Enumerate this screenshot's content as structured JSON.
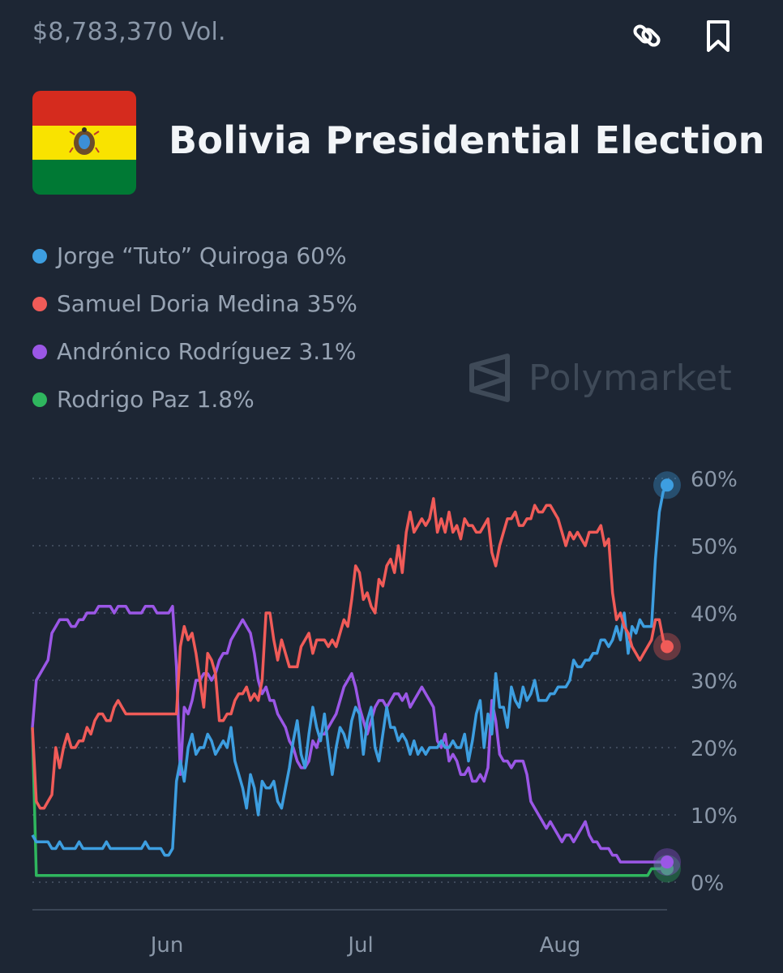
{
  "header": {
    "volume": "$8,783,370 Vol.",
    "share_icon": "link-icon",
    "bookmark_icon": "bookmark-icon"
  },
  "market": {
    "title": "Bolivia Presidential Election",
    "flag_icon": "bolivia-flag-icon",
    "flag_colors": [
      "#d52b1e",
      "#f9e300",
      "#007934"
    ]
  },
  "legend": [
    {
      "label": "Jorge “Tuto” Quiroga 60%",
      "color": "#3d9ee0"
    },
    {
      "label": "Samuel Doria Medina 35%",
      "color": "#f05b58"
    },
    {
      "label": "Andrónico Rodríguez 3.1%",
      "color": "#9b57e6"
    },
    {
      "label": "Rodrigo Paz 1.8%",
      "color": "#2fb65e"
    }
  ],
  "watermark": {
    "text": "Polymarket",
    "icon": "polymarket-logo-icon"
  },
  "chart_data": {
    "type": "line",
    "x_ticks": [
      "Jun",
      "Jul",
      "Aug"
    ],
    "y_ticks": [
      "60%",
      "50%",
      "40%",
      "30%",
      "20%",
      "10%",
      "0%"
    ],
    "ylim": [
      0,
      60
    ],
    "grid": "dotted horizontal",
    "series": [
      {
        "name": "Jorge “Tuto” Quiroga",
        "color": "#3d9ee0",
        "values": [
          7,
          6,
          6,
          6,
          6,
          5,
          5,
          6,
          5,
          5,
          5,
          5,
          6,
          5,
          5,
          5,
          5,
          5,
          5,
          6,
          5,
          5,
          5,
          5,
          5,
          5,
          5,
          5,
          5,
          6,
          5,
          5,
          5,
          5,
          4,
          4,
          5,
          15,
          18,
          15,
          20,
          22,
          19,
          20,
          20,
          22,
          21,
          19,
          20,
          21,
          20,
          23,
          18,
          16,
          14,
          11,
          16,
          14,
          10,
          15,
          14,
          14,
          15,
          12,
          11,
          14,
          17,
          21,
          24,
          19,
          17,
          22,
          26,
          23,
          21,
          25,
          20,
          16,
          20,
          23,
          22,
          20,
          24,
          26,
          25,
          19,
          24,
          26,
          20,
          18,
          22,
          26,
          23,
          23,
          21,
          22,
          21,
          19,
          21,
          19,
          20,
          19,
          20,
          20,
          20,
          21,
          20,
          20,
          21,
          20,
          20,
          22,
          18,
          21,
          25,
          27,
          20,
          25,
          22,
          31,
          26,
          26,
          23,
          29,
          27,
          26,
          29,
          27,
          28,
          30,
          27,
          27,
          27,
          28,
          28,
          29,
          29,
          29,
          30,
          33,
          32,
          32,
          33,
          33,
          34,
          34,
          36,
          36,
          35,
          36,
          38,
          36,
          40,
          34,
          38,
          37,
          39,
          38,
          38,
          38,
          48,
          55,
          58,
          59
        ]
      },
      {
        "name": "Samuel Doria Medina",
        "color": "#f05b58",
        "values": [
          23,
          12,
          11,
          11,
          12,
          13,
          20,
          17,
          20,
          22,
          20,
          20,
          21,
          21,
          23,
          22,
          24,
          25,
          25,
          24,
          24,
          26,
          27,
          26,
          25,
          25,
          25,
          25,
          25,
          25,
          25,
          25,
          25,
          25,
          25,
          25,
          25,
          25,
          35,
          38,
          36,
          37,
          34,
          30,
          26,
          34,
          33,
          31,
          24,
          24,
          25,
          25,
          27,
          28,
          28,
          29,
          27,
          28,
          27,
          30,
          40,
          40,
          36,
          33,
          36,
          34,
          32,
          32,
          32,
          35,
          36,
          37,
          34,
          36,
          36,
          36,
          35,
          36,
          35,
          37,
          39,
          38,
          42,
          47,
          46,
          42,
          43,
          41,
          40,
          45,
          44,
          47,
          48,
          46,
          50,
          46,
          52,
          55,
          52,
          53,
          54,
          53,
          54,
          57,
          52,
          54,
          52,
          55,
          52,
          53,
          51,
          54,
          53,
          53,
          52,
          52,
          53,
          54,
          49,
          47,
          50,
          52,
          54,
          54,
          55,
          53,
          53,
          54,
          54,
          56,
          55,
          55,
          56,
          56,
          55,
          54,
          52,
          50,
          52,
          51,
          52,
          51,
          50,
          52,
          52,
          52,
          53,
          50,
          51,
          43,
          39,
          40,
          38,
          37,
          35,
          34,
          33,
          34,
          35,
          36,
          39,
          39,
          36,
          35
        ]
      },
      {
        "name": "Andrónico Rodríguez",
        "color": "#9b57e6",
        "values": [
          23,
          30,
          31,
          32,
          33,
          37,
          38,
          39,
          39,
          39,
          38,
          38,
          39,
          39,
          40,
          40,
          40,
          41,
          41,
          41,
          41,
          40,
          41,
          41,
          41,
          40,
          40,
          40,
          40,
          41,
          41,
          41,
          40,
          40,
          40,
          40,
          41,
          32,
          16,
          26,
          25,
          27,
          30,
          30,
          31,
          31,
          30,
          31,
          33,
          34,
          34,
          36,
          37,
          38,
          39,
          38,
          37,
          34,
          30,
          28,
          29,
          27,
          27,
          25,
          24,
          23,
          21,
          20,
          18,
          17,
          17,
          18,
          21,
          20,
          22,
          22,
          23,
          24,
          25,
          27,
          29,
          30,
          31,
          29,
          26,
          24,
          22,
          24,
          26,
          27,
          27,
          26,
          27,
          28,
          28,
          27,
          28,
          26,
          27,
          28,
          29,
          28,
          27,
          26,
          21,
          20,
          22,
          18,
          19,
          18,
          16,
          16,
          17,
          15,
          15,
          16,
          15,
          17,
          27,
          24,
          19,
          18,
          18,
          17,
          18,
          18,
          18,
          16,
          12,
          11,
          10,
          9,
          8,
          9,
          8,
          7,
          6,
          7,
          7,
          6,
          7,
          8,
          9,
          7,
          6,
          6,
          5,
          5,
          5,
          4,
          4,
          3,
          3,
          3,
          3,
          3,
          3,
          3,
          3,
          3,
          3,
          3,
          3,
          3
        ]
      },
      {
        "name": "Rodrigo Paz",
        "color": "#2fb65e",
        "values": [
          23,
          1,
          1,
          1,
          1,
          1,
          1,
          1,
          1,
          1,
          1,
          1,
          1,
          1,
          1,
          1,
          1,
          1,
          1,
          1,
          1,
          1,
          1,
          1,
          1,
          1,
          1,
          1,
          1,
          1,
          1,
          1,
          1,
          1,
          1,
          1,
          1,
          1,
          1,
          1,
          1,
          1,
          1,
          1,
          1,
          1,
          1,
          1,
          1,
          1,
          1,
          1,
          1,
          1,
          1,
          1,
          1,
          1,
          1,
          1,
          1,
          1,
          1,
          1,
          1,
          1,
          1,
          1,
          1,
          1,
          1,
          1,
          1,
          1,
          1,
          1,
          1,
          1,
          1,
          1,
          1,
          1,
          1,
          1,
          1,
          1,
          1,
          1,
          1,
          1,
          1,
          1,
          1,
          1,
          1,
          1,
          1,
          1,
          1,
          1,
          1,
          1,
          1,
          1,
          1,
          1,
          1,
          1,
          1,
          1,
          1,
          1,
          1,
          1,
          1,
          1,
          1,
          1,
          1,
          1,
          1,
          1,
          1,
          1,
          1,
          1,
          1,
          1,
          1,
          1,
          1,
          1,
          1,
          1,
          1,
          1,
          1,
          1,
          1,
          1,
          1,
          1,
          1,
          1,
          1,
          1,
          1,
          1,
          1,
          1,
          1,
          1,
          1,
          1,
          1,
          1,
          1,
          1,
          1,
          2,
          2,
          2,
          2,
          2
        ]
      }
    ]
  }
}
